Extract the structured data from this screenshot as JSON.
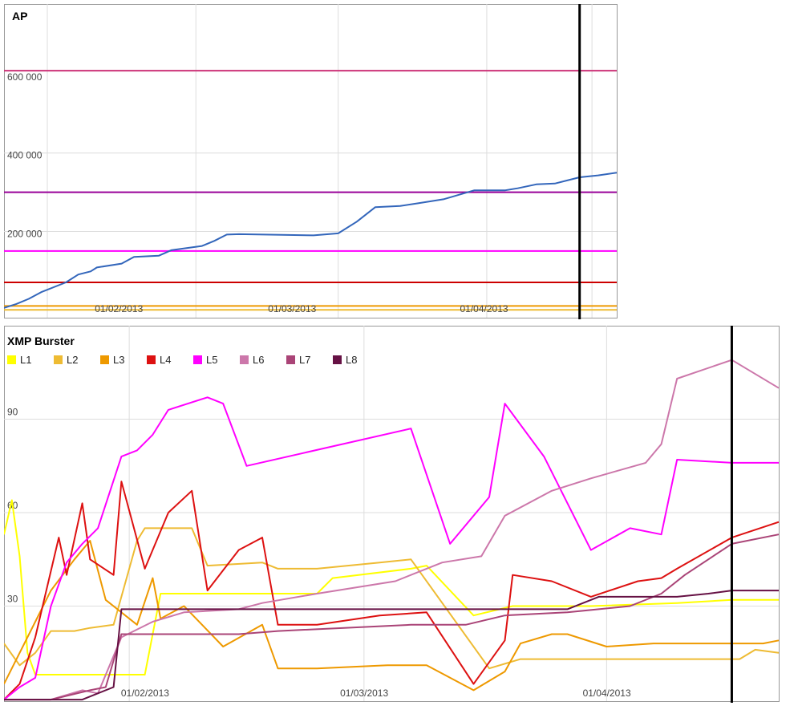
{
  "chart_data": [
    {
      "type": "line",
      "title": "AP",
      "xlabel": "",
      "ylabel": "",
      "x_tick_labels": [
        "01/02/2013",
        "01/03/2013",
        "01/04/2013"
      ],
      "y_tick_labels": [
        "200 000",
        "400 000",
        "600 000"
      ],
      "x_range": [
        "2013-01-15",
        "2013-04-24"
      ],
      "ylim": [
        -20000,
        780000
      ],
      "grid": true,
      "series": [
        {
          "color": "#3366bb",
          "points": [
            [
              "2013-01-15",
              5000
            ],
            [
              "2013-01-17",
              15000
            ],
            [
              "2013-01-19",
              28000
            ],
            [
              "2013-01-21",
              45000
            ],
            [
              "2013-01-25",
              70000
            ],
            [
              "2013-01-27",
              90000
            ],
            [
              "2013-01-29",
              98000
            ],
            [
              "2013-01-30",
              108000
            ],
            [
              "2013-02-03",
              118000
            ],
            [
              "2013-02-05",
              135000
            ],
            [
              "2013-02-09",
              138000
            ],
            [
              "2013-02-11",
              152000
            ],
            [
              "2013-02-16",
              163000
            ],
            [
              "2013-02-18",
              176000
            ],
            [
              "2013-02-20",
              192000
            ],
            [
              "2013-02-22",
              193000
            ],
            [
              "2013-03-06",
              190000
            ],
            [
              "2013-03-10",
              195000
            ],
            [
              "2013-03-13",
              225000
            ],
            [
              "2013-03-16",
              262000
            ],
            [
              "2013-03-20",
              265000
            ],
            [
              "2013-03-23",
              272000
            ],
            [
              "2013-03-27",
              282000
            ],
            [
              "2013-04-01",
              305000
            ],
            [
              "2013-04-06",
              305000
            ],
            [
              "2013-04-08",
              310000
            ],
            [
              "2013-04-11",
              320000
            ],
            [
              "2013-04-14",
              322000
            ],
            [
              "2013-04-16",
              330000
            ],
            [
              "2013-04-18",
              338000
            ],
            [
              "2013-04-21",
              343000
            ],
            [
              "2013-04-24",
              350000
            ]
          ]
        }
      ],
      "reference_lines": [
        {
          "value": 610000,
          "color": "#cc3377"
        },
        {
          "value": 300000,
          "color": "#990099"
        },
        {
          "value": 150000,
          "color": "#ff00ff"
        },
        {
          "value": 70000,
          "color": "#cc0000"
        },
        {
          "value": 10000,
          "color": "#ee9900"
        },
        {
          "value": 0,
          "color": "#eebb33"
        }
      ]
    },
    {
      "type": "line",
      "title": "XMP Burster",
      "xlabel": "",
      "ylabel": "",
      "x_tick_labels": [
        "01/02/2013",
        "01/03/2013",
        "01/04/2013"
      ],
      "y_tick_labels": [
        "30",
        "60",
        "90"
      ],
      "x_range": [
        "2013-01-15",
        "2013-04-24"
      ],
      "ylim": [
        -0.5,
        120
      ],
      "grid": true,
      "legend_position": "top-left",
      "series": [
        {
          "name": "L1",
          "color": "#ffff00",
          "points": [
            [
              "2013-01-15",
              53
            ],
            [
              "2013-01-16",
              64
            ],
            [
              "2013-01-17",
              46
            ],
            [
              "2013-01-18",
              15
            ],
            [
              "2013-01-19",
              8
            ],
            [
              "2013-01-21",
              8
            ],
            [
              "2013-01-30",
              8
            ],
            [
              "2013-02-02",
              8
            ],
            [
              "2013-02-04",
              34
            ],
            [
              "2013-02-10",
              34
            ],
            [
              "2013-02-17",
              34
            ],
            [
              "2013-02-21",
              34
            ],
            [
              "2013-02-24",
              34
            ],
            [
              "2013-02-26",
              39
            ],
            [
              "2013-03-08",
              42
            ],
            [
              "2013-03-10",
              43
            ],
            [
              "2013-03-16",
              27
            ],
            [
              "2013-03-21",
              30
            ],
            [
              "2013-03-31",
              30
            ],
            [
              "2013-04-11",
              31
            ],
            [
              "2013-04-18",
              32
            ],
            [
              "2013-04-24",
              32
            ]
          ]
        },
        {
          "name": "L2",
          "color": "#eebb33",
          "points": [
            [
              "2013-01-15",
              18
            ],
            [
              "2013-01-17",
              11
            ],
            [
              "2013-01-19",
              15
            ],
            [
              "2013-01-21",
              22
            ],
            [
              "2013-01-24",
              22
            ],
            [
              "2013-01-26",
              23
            ],
            [
              "2013-01-29",
              24
            ],
            [
              "2013-02-01",
              51
            ],
            [
              "2013-02-02",
              55
            ],
            [
              "2013-02-08",
              55
            ],
            [
              "2013-02-10",
              43
            ],
            [
              "2013-02-17",
              44
            ],
            [
              "2013-02-19",
              42
            ],
            [
              "2013-02-24",
              42
            ],
            [
              "2013-03-04",
              44
            ],
            [
              "2013-03-08",
              45
            ],
            [
              "2013-03-18",
              10
            ],
            [
              "2013-03-22",
              13
            ],
            [
              "2013-03-26",
              13
            ],
            [
              "2013-04-05",
              13
            ],
            [
              "2013-04-09",
              13
            ],
            [
              "2013-04-19",
              13
            ],
            [
              "2013-04-21",
              16
            ],
            [
              "2013-04-24",
              15
            ]
          ]
        },
        {
          "name": "L3",
          "color": "#ee9900",
          "points": [
            [
              "2013-01-15",
              5
            ],
            [
              "2013-01-17",
              15
            ],
            [
              "2013-01-19",
              25
            ],
            [
              "2013-01-21",
              35
            ],
            [
              "2013-01-24",
              45
            ],
            [
              "2013-01-26",
              51
            ],
            [
              "2013-01-28",
              32
            ],
            [
              "2013-02-01",
              24
            ],
            [
              "2013-02-03",
              39
            ],
            [
              "2013-02-04",
              26
            ],
            [
              "2013-02-07",
              30
            ],
            [
              "2013-02-12",
              17
            ],
            [
              "2013-02-17",
              24
            ],
            [
              "2013-02-19",
              10
            ],
            [
              "2013-02-24",
              10
            ],
            [
              "2013-03-05",
              11
            ],
            [
              "2013-03-10",
              11
            ],
            [
              "2013-03-16",
              3
            ],
            [
              "2013-03-20",
              9
            ],
            [
              "2013-03-22",
              18
            ],
            [
              "2013-03-26",
              21
            ],
            [
              "2013-03-28",
              21
            ],
            [
              "2013-04-02",
              17
            ],
            [
              "2013-04-08",
              18
            ],
            [
              "2013-04-15",
              18
            ],
            [
              "2013-04-22",
              18
            ],
            [
              "2013-04-24",
              19
            ]
          ]
        },
        {
          "name": "L4",
          "color": "#dd1111",
          "points": [
            [
              "2013-01-15",
              0
            ],
            [
              "2013-01-17",
              5
            ],
            [
              "2013-01-19",
              20
            ],
            [
              "2013-01-22",
              52
            ],
            [
              "2013-01-23",
              40
            ],
            [
              "2013-01-25",
              63
            ],
            [
              "2013-01-26",
              45
            ],
            [
              "2013-01-29",
              40
            ],
            [
              "2013-01-30",
              70
            ],
            [
              "2013-02-02",
              42
            ],
            [
              "2013-02-05",
              60
            ],
            [
              "2013-02-08",
              67
            ],
            [
              "2013-02-10",
              35
            ],
            [
              "2013-02-14",
              48
            ],
            [
              "2013-02-17",
              52
            ],
            [
              "2013-02-19",
              24
            ],
            [
              "2013-02-24",
              24
            ],
            [
              "2013-03-04",
              27
            ],
            [
              "2013-03-10",
              28
            ],
            [
              "2013-03-16",
              5
            ],
            [
              "2013-03-20",
              19
            ],
            [
              "2013-03-21",
              40
            ],
            [
              "2013-03-26",
              38
            ],
            [
              "2013-03-31",
              33
            ],
            [
              "2013-04-06",
              38
            ],
            [
              "2013-04-09",
              39
            ],
            [
              "2013-04-11",
              42
            ],
            [
              "2013-04-18",
              52
            ],
            [
              "2013-04-24",
              57
            ]
          ]
        },
        {
          "name": "L5",
          "color": "#ff00ff",
          "points": [
            [
              "2013-01-15",
              0
            ],
            [
              "2013-01-17",
              4
            ],
            [
              "2013-01-19",
              7
            ],
            [
              "2013-01-21",
              30
            ],
            [
              "2013-01-23",
              44
            ],
            [
              "2013-01-25",
              50
            ],
            [
              "2013-01-27",
              55
            ],
            [
              "2013-01-30",
              78
            ],
            [
              "2013-02-01",
              80
            ],
            [
              "2013-02-03",
              85
            ],
            [
              "2013-02-05",
              93
            ],
            [
              "2013-02-10",
              97
            ],
            [
              "2013-02-12",
              95
            ],
            [
              "2013-02-15",
              75
            ],
            [
              "2013-03-08",
              87
            ],
            [
              "2013-03-13",
              50
            ],
            [
              "2013-03-18",
              65
            ],
            [
              "2013-03-20",
              95
            ],
            [
              "2013-03-25",
              78
            ],
            [
              "2013-03-31",
              48
            ],
            [
              "2013-04-05",
              55
            ],
            [
              "2013-04-09",
              53
            ],
            [
              "2013-04-11",
              77
            ],
            [
              "2013-04-18",
              76
            ],
            [
              "2013-04-24",
              76
            ]
          ]
        },
        {
          "name": "L6",
          "color": "#cc77aa",
          "points": [
            [
              "2013-01-15",
              0
            ],
            [
              "2013-01-21",
              0
            ],
            [
              "2013-01-25",
              3
            ],
            [
              "2013-01-27",
              2
            ],
            [
              "2013-01-30",
              20
            ],
            [
              "2013-02-03",
              25
            ],
            [
              "2013-02-07",
              28
            ],
            [
              "2013-02-14",
              29
            ],
            [
              "2013-02-17",
              31
            ],
            [
              "2013-02-24",
              34
            ],
            [
              "2013-03-06",
              38
            ],
            [
              "2013-03-12",
              44
            ],
            [
              "2013-03-17",
              46
            ],
            [
              "2013-03-20",
              59
            ],
            [
              "2013-03-26",
              67
            ],
            [
              "2013-03-31",
              71
            ],
            [
              "2013-04-07",
              76
            ],
            [
              "2013-04-09",
              82
            ],
            [
              "2013-04-11",
              103
            ],
            [
              "2013-04-18",
              109
            ],
            [
              "2013-04-24",
              100
            ]
          ]
        },
        {
          "name": "L7",
          "color": "#aa4477",
          "points": [
            [
              "2013-01-15",
              0
            ],
            [
              "2013-01-21",
              0
            ],
            [
              "2013-01-26",
              3
            ],
            [
              "2013-01-28",
              4
            ],
            [
              "2013-01-30",
              21
            ],
            [
              "2013-02-05",
              21
            ],
            [
              "2013-02-14",
              21
            ],
            [
              "2013-02-19",
              22
            ],
            [
              "2013-03-08",
              24
            ],
            [
              "2013-03-15",
              24
            ],
            [
              "2013-03-20",
              27
            ],
            [
              "2013-03-28",
              28
            ],
            [
              "2013-04-01",
              29
            ],
            [
              "2013-04-05",
              30
            ],
            [
              "2013-04-09",
              34
            ],
            [
              "2013-04-12",
              40
            ],
            [
              "2013-04-18",
              50
            ],
            [
              "2013-04-24",
              53
            ]
          ]
        },
        {
          "name": "L8",
          "color": "#661144",
          "points": [
            [
              "2013-01-15",
              0
            ],
            [
              "2013-01-21",
              0
            ],
            [
              "2013-01-25",
              0
            ],
            [
              "2013-01-29",
              4
            ],
            [
              "2013-01-30",
              29
            ],
            [
              "2013-02-07",
              29
            ],
            [
              "2013-02-14",
              29
            ],
            [
              "2013-02-24",
              29
            ],
            [
              "2013-03-21",
              29
            ],
            [
              "2013-03-28",
              29
            ],
            [
              "2013-04-01",
              33
            ],
            [
              "2013-04-06",
              33
            ],
            [
              "2013-04-11",
              33
            ],
            [
              "2013-04-15",
              34
            ],
            [
              "2013-04-18",
              35
            ],
            [
              "2013-04-24",
              35
            ]
          ]
        }
      ]
    }
  ]
}
